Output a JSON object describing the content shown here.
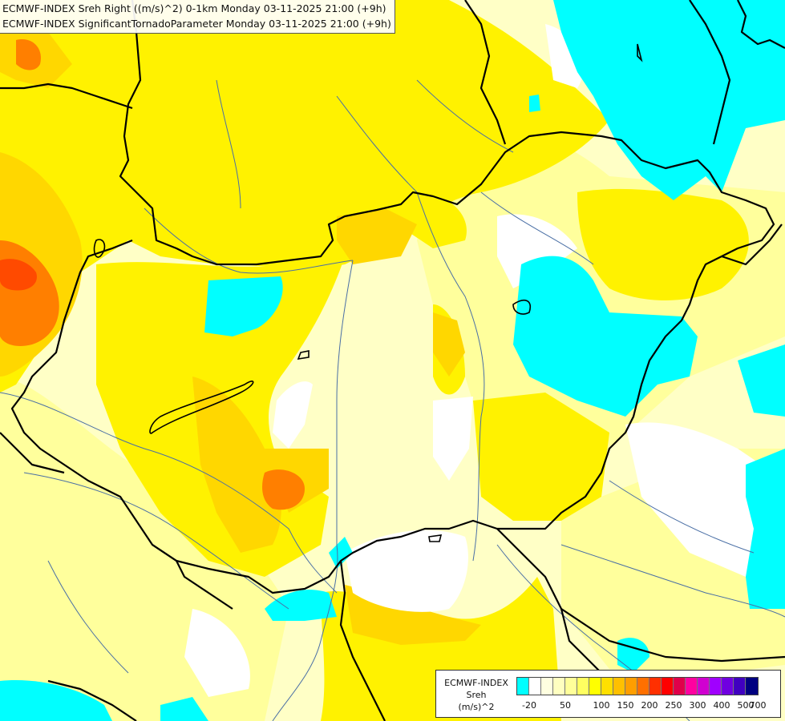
{
  "header": {
    "line1": "ECMWF-INDEX Sreh Right ((m/s)^2) 0-1km Monday 03-11-2025 21:00 (+9h)",
    "line2": "ECMWF-INDEX SignificantTornadoParameter Monday 03-11-2025 21:00 (+9h)"
  },
  "legend": {
    "title_line1": "ECMWF-INDEX",
    "title_line2": "Sreh",
    "title_line3": "(m/s)^2",
    "swatch_colors": [
      "#00ffff",
      "#ffffff",
      "#ffffe0",
      "#ffffc0",
      "#ffff99",
      "#ffff60",
      "#ffff00",
      "#ffe000",
      "#ffc000",
      "#ff9e00",
      "#ff7000",
      "#ff3000",
      "#ff0000",
      "#e0004a",
      "#ff00a0",
      "#d000d0",
      "#a000ff",
      "#7000e0",
      "#4000c0",
      "#000080"
    ],
    "tick_labels": [
      "-20",
      "50",
      "100",
      "150",
      "200",
      "250",
      "300",
      "400",
      "500",
      "700"
    ],
    "tick_value_index": [
      1,
      4,
      7,
      9,
      11,
      13,
      15,
      17,
      19,
      20
    ]
  },
  "map_colors": {
    "white": "#ffffff",
    "cyan": "#00ffff",
    "pale": "#ffffc6",
    "light_yellow": "#ffff9c",
    "yellow": "#fff200",
    "gold": "#ffd700",
    "orange_light": "#ffb000",
    "orange": "#ff7f00",
    "red_orange": "#ff4a00",
    "border": "#000000",
    "river": "#4a6fa5"
  }
}
